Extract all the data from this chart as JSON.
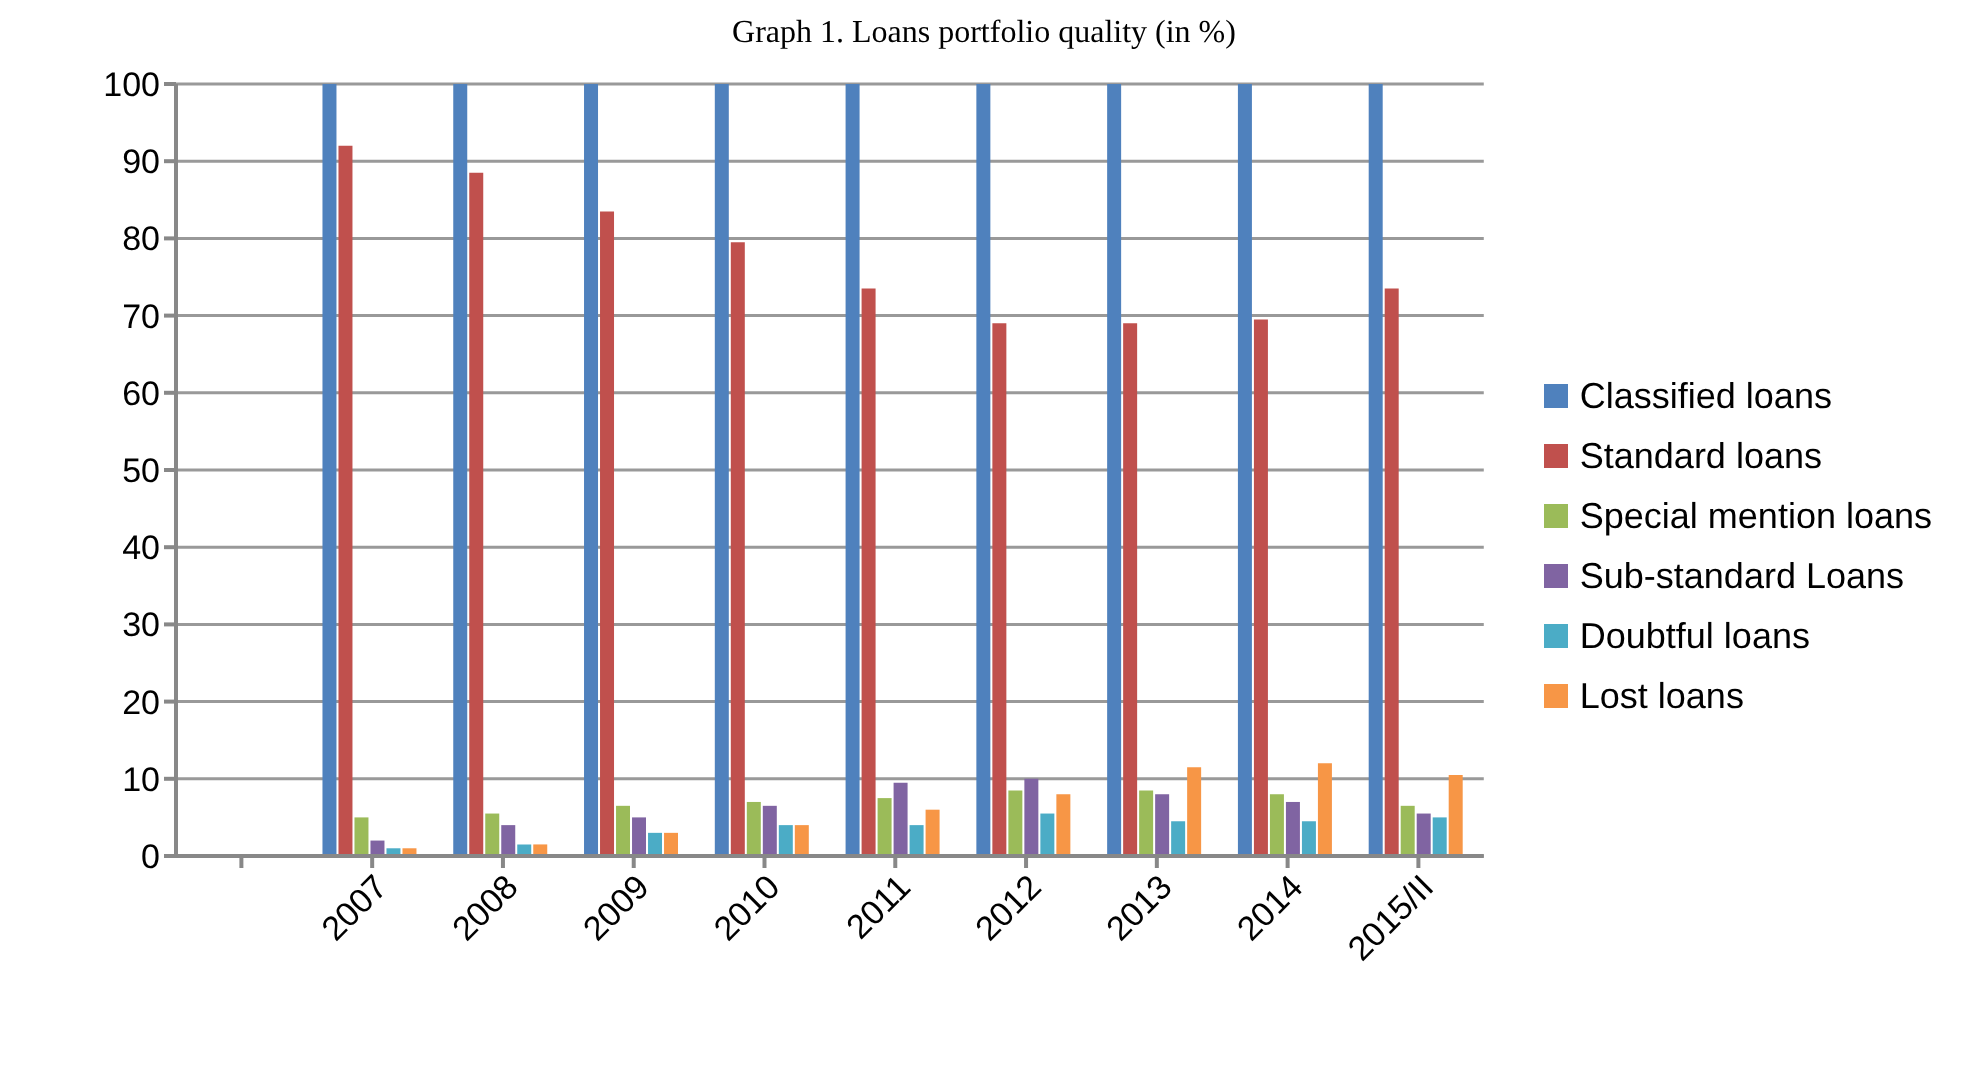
{
  "chart_data": {
    "type": "bar",
    "title": "Graph 1. Loans portfolio quality (in %)",
    "categories": [
      null,
      "2007",
      "2008",
      "2009",
      "2010",
      "2011",
      "2012",
      "2013",
      "2014",
      "2015/II"
    ],
    "series": [
      {
        "name": "Classified loans",
        "color": "#4f81bd",
        "values": [
          null,
          100,
          100,
          100,
          100,
          100,
          100,
          100,
          100,
          100
        ]
      },
      {
        "name": "Standard loans",
        "color": "#c0504d",
        "values": [
          null,
          92,
          88.5,
          83.5,
          79.5,
          73.5,
          69,
          69,
          69.5,
          73.5
        ]
      },
      {
        "name": "Special mention loans",
        "color": "#9bbb59",
        "values": [
          null,
          5,
          5.5,
          6.5,
          7,
          7.5,
          8.5,
          8.5,
          8,
          6.5
        ]
      },
      {
        "name": "Sub-standard Loans",
        "color": "#8064a2",
        "values": [
          null,
          2,
          4,
          5,
          6.5,
          9.5,
          10,
          8,
          7,
          5.5
        ]
      },
      {
        "name": "Doubtful loans",
        "color": "#4bacc6",
        "values": [
          null,
          1,
          1.5,
          3,
          4,
          4,
          5.5,
          4.5,
          4.5,
          5
        ]
      },
      {
        "name": "Lost loans",
        "color": "#f79646",
        "values": [
          null,
          1,
          1.5,
          3,
          4,
          6,
          8,
          11.5,
          12,
          10.5
        ]
      }
    ],
    "ylim": [
      0,
      100
    ],
    "yticks": [
      0,
      10,
      20,
      30,
      40,
      50,
      60,
      70,
      80,
      90,
      100
    ],
    "grid": "y",
    "legend": "right"
  }
}
